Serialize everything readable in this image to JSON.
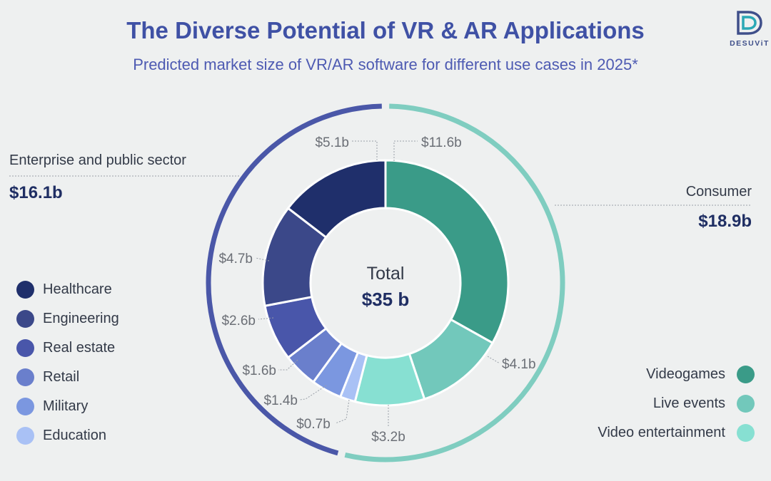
{
  "title": "The Diverse Potential of VR & AR Applications",
  "subtitle": "Predicted market size of VR/AR software for different use cases in 2025*",
  "logo": {
    "text": "DESUViT",
    "color": "#3f4f8a",
    "accent": "#2aa8b5"
  },
  "chart_data": {
    "type": "donut",
    "unit": "$ billion",
    "center": {
      "label": "Total",
      "value": "$35 b"
    },
    "groups": [
      {
        "name": "Enterprise and public sector",
        "total_label": "$16.1b",
        "value": 16.1,
        "color": "#4a57a8"
      },
      {
        "name": "Consumer",
        "total_label": "$18.9b",
        "value": 18.9,
        "color": "#7fcdc0"
      }
    ],
    "segments": [
      {
        "name": "Videogames",
        "value": 11.6,
        "label": "$11.6b",
        "color": "#3a9b88",
        "group": "Consumer"
      },
      {
        "name": "Live events",
        "value": 4.1,
        "label": "$4.1b",
        "color": "#72c8bb",
        "group": "Consumer"
      },
      {
        "name": "Video entertainment",
        "value": 3.2,
        "label": "$3.2b",
        "color": "#87e0d2",
        "group": "Consumer"
      },
      {
        "name": "Education",
        "value": 0.7,
        "label": "$0.7b",
        "color": "#a9c1f5",
        "group": "Enterprise and public sector"
      },
      {
        "name": "Military",
        "value": 1.4,
        "label": "$1.4b",
        "color": "#7b97e0",
        "group": "Enterprise and public sector"
      },
      {
        "name": "Retail",
        "value": 1.6,
        "label": "$1.6b",
        "color": "#6a7fcc",
        "group": "Enterprise and public sector"
      },
      {
        "name": "Real estate",
        "value": 2.6,
        "label": "$2.6b",
        "color": "#4956aa",
        "group": "Enterprise and public sector"
      },
      {
        "name": "Engineering",
        "value": 4.7,
        "label": "$4.7b",
        "color": "#3b4889",
        "group": "Enterprise and public sector"
      },
      {
        "name": "Healthcare",
        "value": 5.1,
        "label": "$5.1b",
        "color": "#1f2f6b",
        "group": "Enterprise and public sector"
      }
    ],
    "legend_left": [
      {
        "label": "Healthcare",
        "color": "#1f2f6b"
      },
      {
        "label": "Engineering",
        "color": "#3b4889"
      },
      {
        "label": "Real estate",
        "color": "#4956aa"
      },
      {
        "label": "Retail",
        "color": "#6a7fcc"
      },
      {
        "label": "Military",
        "color": "#7b97e0"
      },
      {
        "label": "Education",
        "color": "#a9c1f5"
      }
    ],
    "legend_right": [
      {
        "label": "Videogames",
        "color": "#3a9b88"
      },
      {
        "label": "Live events",
        "color": "#72c8bb"
      },
      {
        "label": "Video entertainment",
        "color": "#87e0d2"
      }
    ]
  }
}
